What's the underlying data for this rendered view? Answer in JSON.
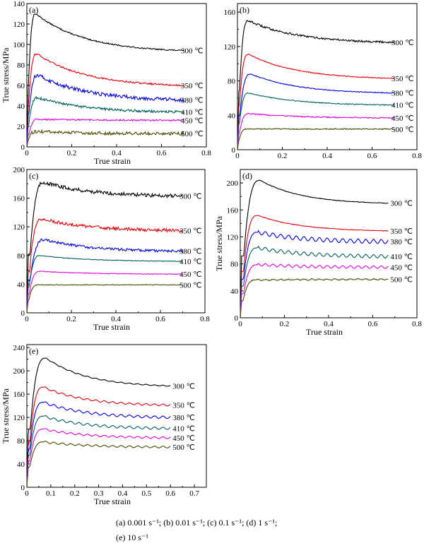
{
  "caption": {
    "line1": "(a) 0.001 s⁻¹; (b) 0.01 s⁻¹; (c) 0.1 s⁻¹; (d) 1 s⁻¹;",
    "line2": "(e) 10 s⁻¹"
  },
  "chart_data": [
    {
      "type": "line",
      "panel_label": "(a)",
      "xlabel": "True strain",
      "ylabel": "True stress/MPa",
      "xlim": [
        0,
        0.8
      ],
      "ylim": [
        0,
        140
      ],
      "xticks": [
        "0",
        "0.2",
        "0.4",
        "0.6",
        "0.8"
      ],
      "yticks": [
        "0",
        "20",
        "40",
        "60",
        "80",
        "100",
        "120",
        "140"
      ],
      "series": [
        {
          "name": "300 ℃",
          "color": "#000000",
          "peak": 130,
          "peak_strain": 0.04,
          "end": 94,
          "noise": 0.6,
          "wave": 0
        },
        {
          "name": "350 ℃",
          "color": "#e8000b",
          "peak": 91,
          "peak_strain": 0.045,
          "end": 60,
          "noise": 0.8,
          "wave": 0
        },
        {
          "name": "380 ℃",
          "color": "#0000e0",
          "peak": 70,
          "peak_strain": 0.05,
          "end": 46,
          "noise": 1.8,
          "wave": 0
        },
        {
          "name": "410 ℃",
          "color": "#00605a",
          "peak": 48,
          "peak_strain": 0.05,
          "end": 34,
          "noise": 1.2,
          "wave": 0
        },
        {
          "name": "450 ℃",
          "color": "#e000e0",
          "peak": 27,
          "peak_strain": 0.05,
          "end": 26,
          "noise": 0.8,
          "wave": 0
        },
        {
          "name": "500 ℃",
          "color": "#4a4a00",
          "peak": 15,
          "peak_strain": 0.04,
          "end": 13,
          "noise": 1.6,
          "wave": 0
        }
      ]
    },
    {
      "type": "line",
      "panel_label": "(b)",
      "xlabel": "",
      "ylabel": "",
      "xlim": [
        0,
        0.8
      ],
      "ylim": [
        0,
        170
      ],
      "xticks": [
        "0",
        "0.2",
        "0.4",
        "0.6",
        "0.8"
      ],
      "yticks": [
        "0",
        "40",
        "80",
        "120",
        "160"
      ],
      "series": [
        {
          "name": "300 ℃",
          "color": "#000000",
          "peak": 150,
          "peak_strain": 0.05,
          "end": 125,
          "noise": 1.2,
          "wave": 0
        },
        {
          "name": "350 ℃",
          "color": "#e8000b",
          "peak": 111,
          "peak_strain": 0.05,
          "end": 83,
          "noise": 0.5,
          "wave": 0
        },
        {
          "name": "380 ℃",
          "color": "#0000e0",
          "peak": 88,
          "peak_strain": 0.06,
          "end": 66,
          "noise": 0.5,
          "wave": 0
        },
        {
          "name": "410 ℃",
          "color": "#00605a",
          "peak": 66,
          "peak_strain": 0.05,
          "end": 52,
          "noise": 0.5,
          "wave": 0
        },
        {
          "name": "450 ℃",
          "color": "#e000e0",
          "peak": 42,
          "peak_strain": 0.05,
          "end": 37,
          "noise": 0.6,
          "wave": 0
        },
        {
          "name": "500 ℃",
          "color": "#4a4a00",
          "peak": 24,
          "peak_strain": 0.04,
          "end": 24,
          "noise": 0.6,
          "wave": 0
        }
      ]
    },
    {
      "type": "line",
      "panel_label": "(c)",
      "xlabel": "True strain",
      "ylabel": "",
      "xlim": [
        0,
        0.8
      ],
      "ylim": [
        0,
        200
      ],
      "xticks": [
        "0",
        "0.2",
        "0.4",
        "0.6",
        "0.8"
      ],
      "yticks": [
        "0",
        "40",
        "80",
        "120",
        "160",
        "200"
      ],
      "series": [
        {
          "name": "300 ℃",
          "color": "#000000",
          "peak": 182,
          "peak_strain": 0.08,
          "end": 163,
          "noise": 2.5,
          "wave": 0
        },
        {
          "name": "350 ℃",
          "color": "#e8000b",
          "peak": 131,
          "peak_strain": 0.07,
          "end": 115,
          "noise": 2.2,
          "wave": 0
        },
        {
          "name": "380 ℃",
          "color": "#0000e0",
          "peak": 102,
          "peak_strain": 0.08,
          "end": 86,
          "noise": 1.8,
          "wave": 0
        },
        {
          "name": "410 ℃",
          "color": "#00605a",
          "peak": 80,
          "peak_strain": 0.06,
          "end": 72,
          "noise": 0.4,
          "wave": 0
        },
        {
          "name": "450 ℃",
          "color": "#e000e0",
          "peak": 58,
          "peak_strain": 0.06,
          "end": 54,
          "noise": 0.4,
          "wave": 0
        },
        {
          "name": "500 ℃",
          "color": "#4a4a00",
          "peak": 39,
          "peak_strain": 0.05,
          "end": 39,
          "noise": 0.4,
          "wave": 0
        }
      ]
    },
    {
      "type": "line",
      "panel_label": "(d)",
      "xlabel": "True strain",
      "ylabel": "True stress/MPa",
      "xlim": [
        0,
        0.8
      ],
      "ylim": [
        0,
        220
      ],
      "xticks": [
        "0",
        "0.2",
        "0.4",
        "0.6",
        "0.8"
      ],
      "yticks": [
        "0",
        "40",
        "80",
        "120",
        "160",
        "200"
      ],
      "series": [
        {
          "name": "300 ℃",
          "color": "#000000",
          "peak": 204,
          "peak_strain": 0.09,
          "end": 170,
          "noise": 0.4,
          "wave": 0
        },
        {
          "name": "350 ℃",
          "color": "#e8000b",
          "peak": 152,
          "peak_strain": 0.08,
          "end": 129,
          "noise": 0.4,
          "wave": 0
        },
        {
          "name": "380 ℃",
          "color": "#0000e0",
          "peak": 127,
          "peak_strain": 0.08,
          "end": 113,
          "noise": 0.3,
          "wave": 6
        },
        {
          "name": "410 ℃",
          "color": "#00605a",
          "peak": 104,
          "peak_strain": 0.08,
          "end": 91,
          "noise": 0.3,
          "wave": 5
        },
        {
          "name": "450 ℃",
          "color": "#e000e0",
          "peak": 79,
          "peak_strain": 0.08,
          "end": 75,
          "noise": 0.3,
          "wave": 4
        },
        {
          "name": "500 ℃",
          "color": "#4a4a00",
          "peak": 56,
          "peak_strain": 0.07,
          "end": 57,
          "noise": 0.6,
          "wave": 1.5
        }
      ]
    },
    {
      "type": "line",
      "panel_label": "(e)",
      "xlabel": "True strain",
      "ylabel": "True stress/MPa",
      "xlim": [
        0,
        0.75
      ],
      "ylim": [
        0,
        245
      ],
      "xticks": [
        "0",
        "0.1",
        "0.2",
        "0.3",
        "0.4",
        "0.5",
        "0.6",
        "0.7"
      ],
      "yticks": [
        "0",
        "40",
        "80",
        "120",
        "160",
        "200",
        "240"
      ],
      "series": [
        {
          "name": "300 ℃",
          "color": "#000000",
          "peak": 222,
          "peak_strain": 0.08,
          "end": 174,
          "noise": 0.3,
          "wave": 1.5
        },
        {
          "name": "350 ℃",
          "color": "#e8000b",
          "peak": 172,
          "peak_strain": 0.07,
          "end": 141,
          "noise": 0.3,
          "wave": 3
        },
        {
          "name": "380 ℃",
          "color": "#0000e0",
          "peak": 146,
          "peak_strain": 0.07,
          "end": 120,
          "noise": 0.3,
          "wave": 4
        },
        {
          "name": "410 ℃",
          "color": "#00605a",
          "peak": 122,
          "peak_strain": 0.07,
          "end": 101,
          "noise": 0.3,
          "wave": 4
        },
        {
          "name": "450 ℃",
          "color": "#e000e0",
          "peak": 100,
          "peak_strain": 0.07,
          "end": 85,
          "noise": 0.3,
          "wave": 3
        },
        {
          "name": "500 ℃",
          "color": "#4a4a00",
          "peak": 78,
          "peak_strain": 0.07,
          "end": 69,
          "noise": 0.3,
          "wave": 3
        }
      ]
    }
  ]
}
